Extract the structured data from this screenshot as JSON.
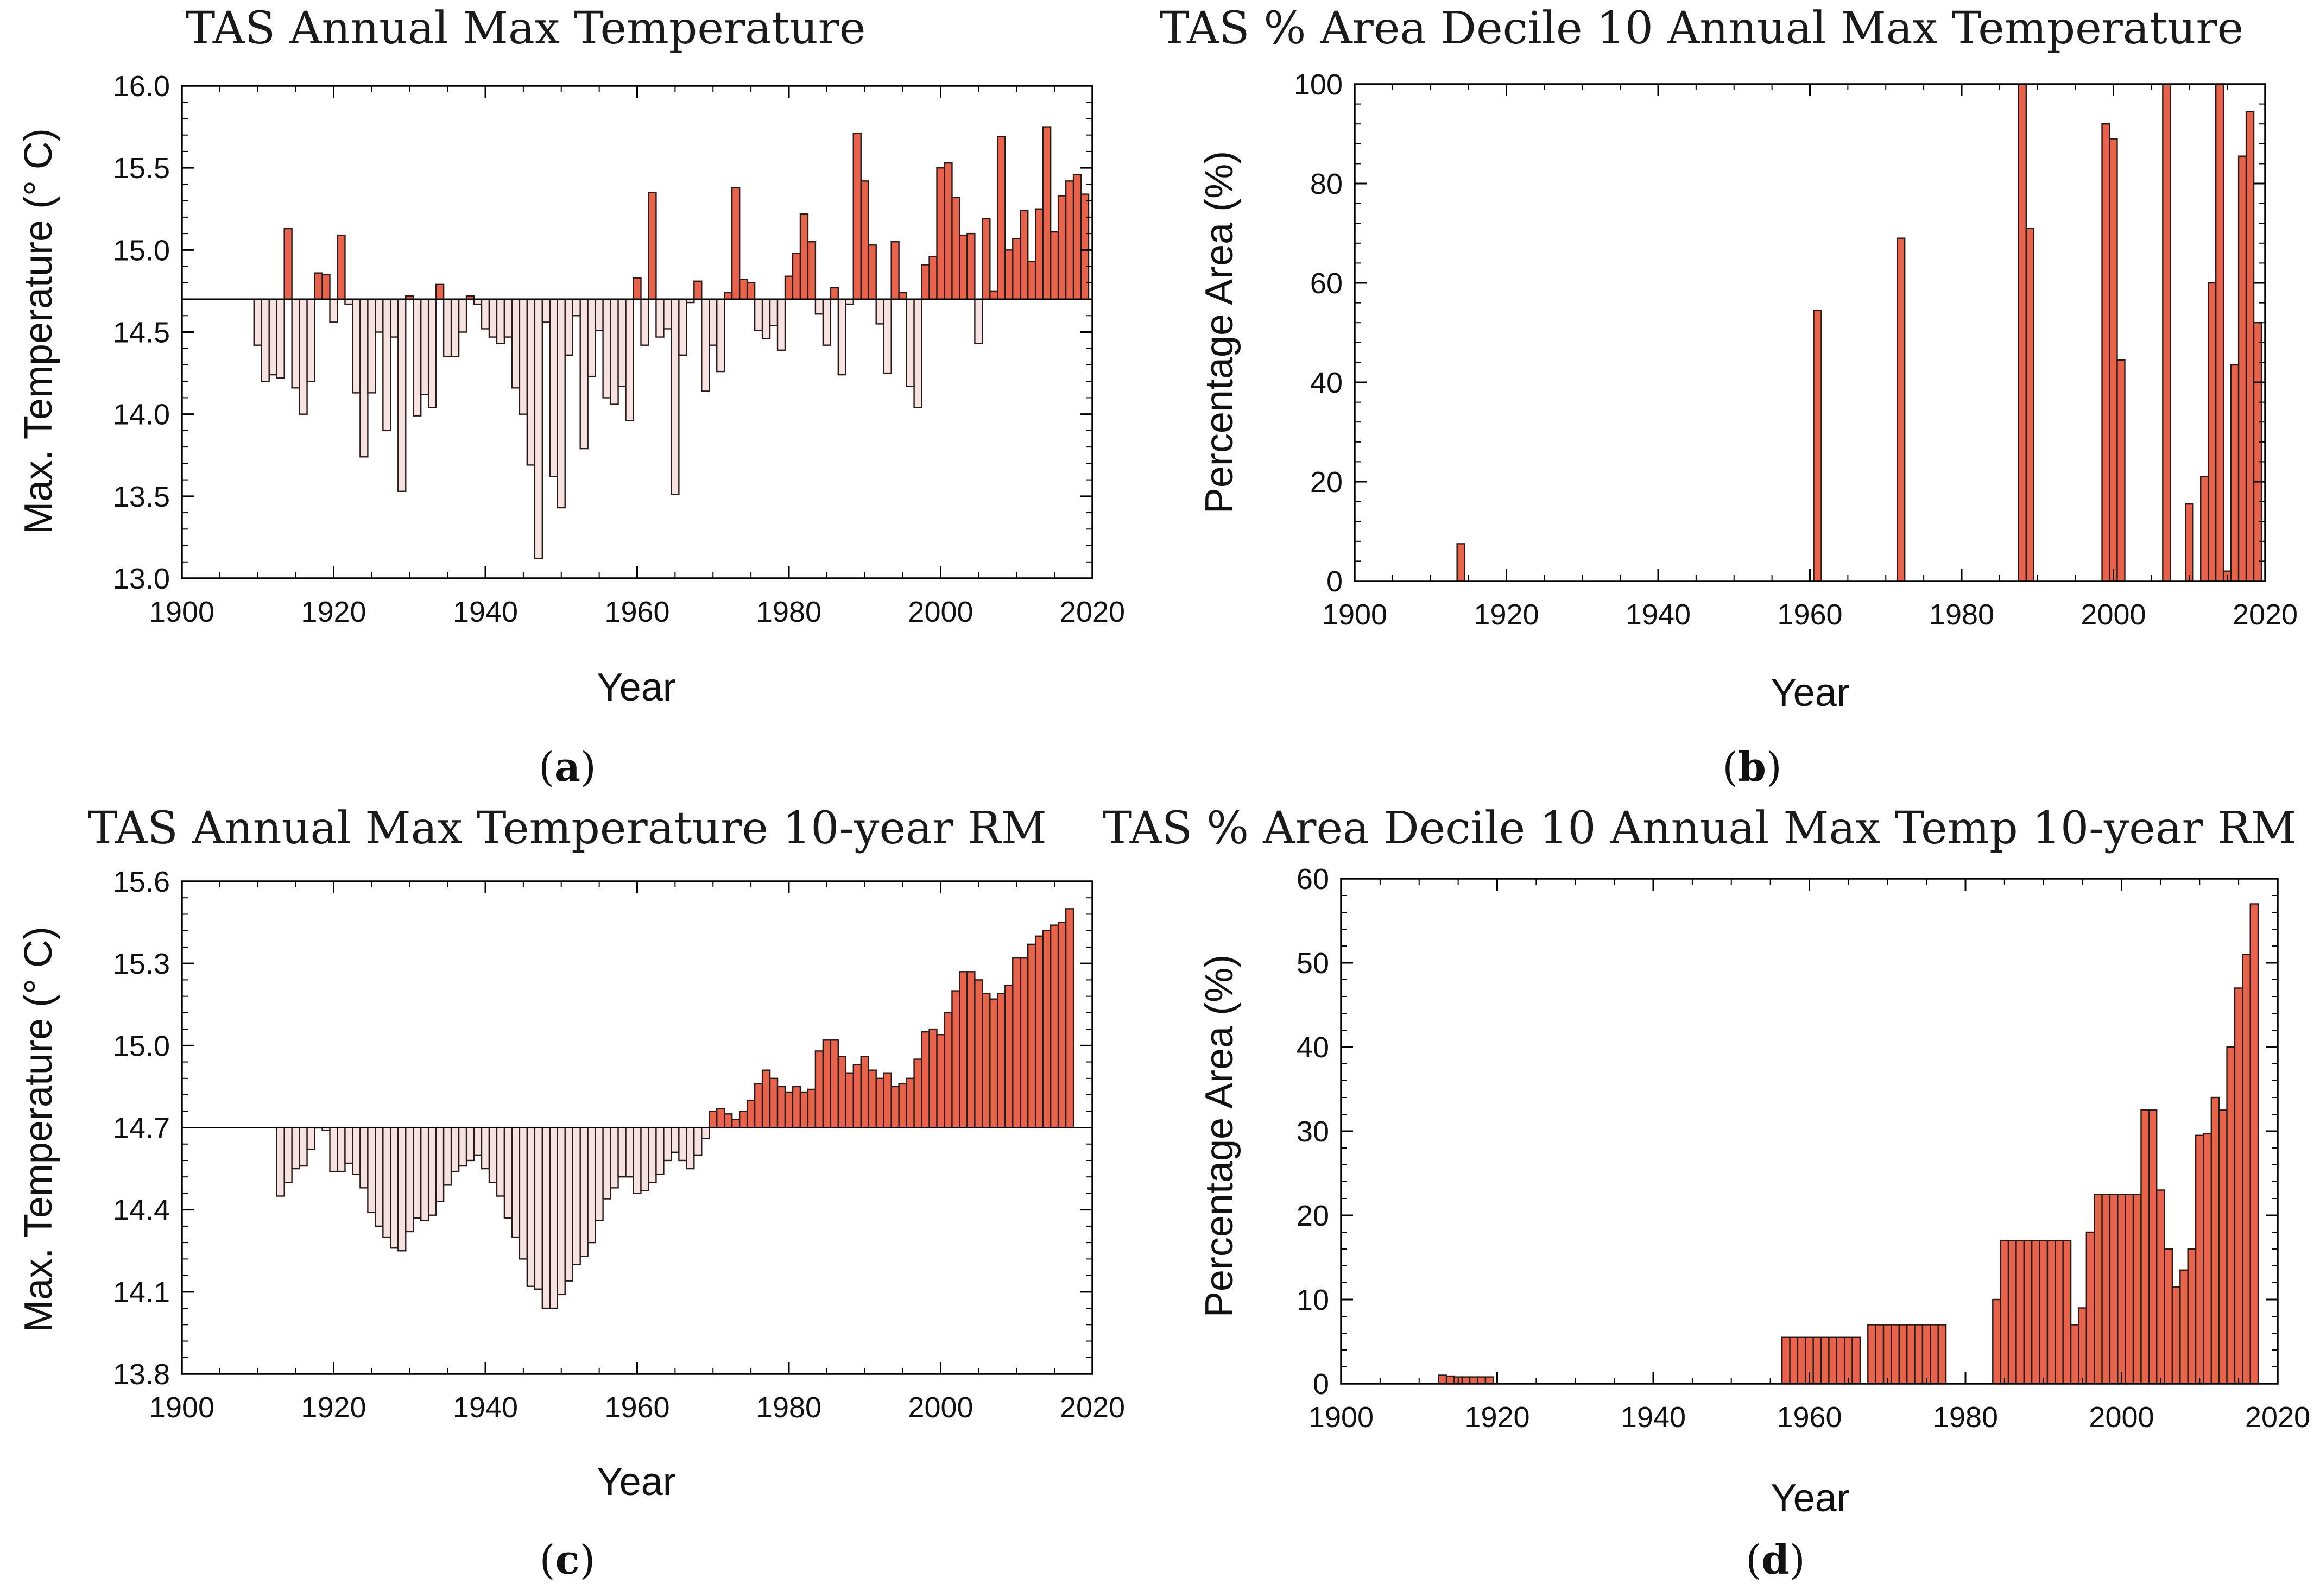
{
  "colors": {
    "positive": "#E8634C",
    "negative": "#F6E2E0",
    "edge": "#2a1a1a",
    "axis": "#000000"
  },
  "chart_data": [
    {
      "panel": "a",
      "sublabel": "a",
      "type": "bar",
      "title": "TAS Annual Max Temperature",
      "xlabel": "Year",
      "ylabel": "Max. Temperature (° C)",
      "xlim": [
        1900,
        2020
      ],
      "ylim": [
        13.0,
        16.0
      ],
      "baseline": 14.7,
      "xticks": [
        1900,
        1920,
        1940,
        1960,
        1980,
        2000,
        2020
      ],
      "xtick_labels": [
        "1900",
        "1920",
        "1940",
        "1960",
        "1980",
        "2000",
        "2020"
      ],
      "yticks": [
        13.0,
        13.5,
        14.0,
        14.5,
        15.0,
        15.5,
        16.0
      ],
      "ytick_labels": [
        "13.0",
        "13.5",
        "14.0",
        "14.5",
        "15.0",
        "15.5",
        "16.0"
      ],
      "x": [
        1910,
        1911,
        1912,
        1913,
        1914,
        1915,
        1916,
        1917,
        1918,
        1919,
        1920,
        1921,
        1922,
        1923,
        1924,
        1925,
        1926,
        1927,
        1928,
        1929,
        1930,
        1931,
        1932,
        1933,
        1934,
        1935,
        1936,
        1937,
        1938,
        1939,
        1940,
        1941,
        1942,
        1943,
        1944,
        1945,
        1946,
        1947,
        1948,
        1949,
        1950,
        1951,
        1952,
        1953,
        1954,
        1955,
        1956,
        1957,
        1958,
        1959,
        1960,
        1961,
        1962,
        1963,
        1964,
        1965,
        1966,
        1967,
        1968,
        1969,
        1970,
        1971,
        1972,
        1973,
        1974,
        1975,
        1976,
        1977,
        1978,
        1979,
        1980,
        1981,
        1982,
        1983,
        1984,
        1985,
        1986,
        1987,
        1988,
        1989,
        1990,
        1991,
        1992,
        1993,
        1994,
        1995,
        1996,
        1997,
        1998,
        1999,
        2000,
        2001,
        2002,
        2003,
        2004,
        2005,
        2006,
        2007,
        2008,
        2009,
        2010,
        2011,
        2012,
        2013,
        2014,
        2015,
        2016,
        2017,
        2018,
        2019
      ],
      "values": [
        14.42,
        14.2,
        14.24,
        14.22,
        15.13,
        14.16,
        14.0,
        14.2,
        14.86,
        14.85,
        14.56,
        15.09,
        14.67,
        14.13,
        13.74,
        14.13,
        14.5,
        13.9,
        14.47,
        13.53,
        14.72,
        13.99,
        14.12,
        14.04,
        14.79,
        14.35,
        14.35,
        14.5,
        14.72,
        14.67,
        14.52,
        14.47,
        14.43,
        14.47,
        14.16,
        14.0,
        13.69,
        13.12,
        14.56,
        13.62,
        13.43,
        14.36,
        14.6,
        13.79,
        14.23,
        14.51,
        14.1,
        14.06,
        14.17,
        13.96,
        14.83,
        14.42,
        15.35,
        14.47,
        14.52,
        13.51,
        14.36,
        14.68,
        14.81,
        14.14,
        14.42,
        14.26,
        14.74,
        15.38,
        14.82,
        14.8,
        14.51,
        14.46,
        14.54,
        14.39,
        14.84,
        14.98,
        15.22,
        15.05,
        14.61,
        14.42,
        14.77,
        14.24,
        14.67,
        15.71,
        15.42,
        15.03,
        14.55,
        14.25,
        15.05,
        14.74,
        14.17,
        14.04,
        14.91,
        14.96,
        15.5,
        15.53,
        15.32,
        15.09,
        15.1,
        14.43,
        15.19,
        14.75,
        15.69,
        15.0,
        15.07,
        15.24,
        14.93,
        15.25,
        15.75,
        15.11,
        15.33,
        15.42,
        15.46,
        15.34
      ]
    },
    {
      "panel": "b",
      "sublabel": "b",
      "type": "bar",
      "title": "TAS % Area Decile 10 Annual Max Temperature",
      "xlabel": "Year",
      "ylabel": "Percentage Area (%)",
      "xlim": [
        1900,
        2020
      ],
      "ylim": [
        0,
        100
      ],
      "baseline": 0,
      "xticks": [
        1900,
        1920,
        1940,
        1960,
        1980,
        2000,
        2020
      ],
      "xtick_labels": [
        "1900",
        "1920",
        "1940",
        "1960",
        "1980",
        "2000",
        "2020"
      ],
      "yticks": [
        0,
        20,
        40,
        60,
        80,
        100
      ],
      "ytick_labels": [
        "0",
        "20",
        "40",
        "60",
        "80",
        "100"
      ],
      "x": [
        1914,
        1961,
        1972,
        1988,
        1989,
        1999,
        2000,
        2001,
        2007,
        2010,
        2012,
        2013,
        2014,
        2015,
        2016,
        2017,
        2018,
        2019
      ],
      "values": [
        7.5,
        54.5,
        69.0,
        100.0,
        71.0,
        92.0,
        89.0,
        44.5,
        100.0,
        15.5,
        21.0,
        60.0,
        100.0,
        2.0,
        43.5,
        85.5,
        94.5,
        52.0
      ]
    },
    {
      "panel": "c",
      "sublabel": "c",
      "type": "bar",
      "title": "TAS Annual Max Temperature 10-year RM",
      "xlabel": "Year",
      "ylabel": "Max. Temperature (° C)",
      "xlim": [
        1900,
        2020
      ],
      "ylim": [
        13.8,
        15.6
      ],
      "baseline": 14.7,
      "xticks": [
        1900,
        1920,
        1940,
        1960,
        1980,
        2000,
        2020
      ],
      "xtick_labels": [
        "1900",
        "1920",
        "1940",
        "1960",
        "1980",
        "2000",
        "2020"
      ],
      "yticks": [
        13.8,
        14.1,
        14.4,
        14.7,
        15.0,
        15.3,
        15.6
      ],
      "ytick_labels": [
        "13.8",
        "14.1",
        "14.4",
        "14.7",
        "15.0",
        "15.3",
        "15.6"
      ],
      "x": [
        1913,
        1914,
        1915,
        1916,
        1917,
        1918,
        1919,
        1920,
        1921,
        1922,
        1923,
        1924,
        1925,
        1926,
        1927,
        1928,
        1929,
        1930,
        1931,
        1932,
        1933,
        1934,
        1935,
        1936,
        1937,
        1938,
        1939,
        1940,
        1941,
        1942,
        1943,
        1944,
        1945,
        1946,
        1947,
        1948,
        1949,
        1950,
        1951,
        1952,
        1953,
        1954,
        1955,
        1956,
        1957,
        1958,
        1959,
        1960,
        1961,
        1962,
        1963,
        1964,
        1965,
        1966,
        1967,
        1968,
        1969,
        1970,
        1971,
        1972,
        1973,
        1974,
        1975,
        1976,
        1977,
        1978,
        1979,
        1980,
        1981,
        1982,
        1983,
        1984,
        1985,
        1986,
        1987,
        1988,
        1989,
        1990,
        1991,
        1992,
        1993,
        1994,
        1995,
        1996,
        1997,
        1998,
        1999,
        2000,
        2001,
        2002,
        2003,
        2004,
        2005,
        2006,
        2007,
        2008,
        2009,
        2010,
        2011,
        2012,
        2013,
        2014,
        2015,
        2016,
        2017
      ],
      "values": [
        14.45,
        14.5,
        14.55,
        14.56,
        14.62,
        14.7,
        14.69,
        14.54,
        14.54,
        14.57,
        14.53,
        14.48,
        14.39,
        14.34,
        14.3,
        14.26,
        14.25,
        14.32,
        14.37,
        14.36,
        14.38,
        14.43,
        14.49,
        14.54,
        14.56,
        14.58,
        14.6,
        14.55,
        14.5,
        14.45,
        14.37,
        14.3,
        14.22,
        14.12,
        14.11,
        14.04,
        14.04,
        14.09,
        14.14,
        14.2,
        14.23,
        14.28,
        14.36,
        14.44,
        14.48,
        14.52,
        14.52,
        14.46,
        14.47,
        14.5,
        14.53,
        14.58,
        14.61,
        14.58,
        14.55,
        14.6,
        14.66,
        14.76,
        14.77,
        14.75,
        14.73,
        14.76,
        14.8,
        14.86,
        14.91,
        14.88,
        14.85,
        14.83,
        14.85,
        14.83,
        14.84,
        14.98,
        15.02,
        15.02,
        14.96,
        14.9,
        14.93,
        14.96,
        14.91,
        14.88,
        14.9,
        14.85,
        14.86,
        14.88,
        14.95,
        15.05,
        15.06,
        15.04,
        15.12,
        15.2,
        15.27,
        15.27,
        15.24,
        15.19,
        15.17,
        15.19,
        15.22,
        15.32,
        15.32,
        15.37,
        15.4,
        15.42,
        15.44,
        15.45,
        15.5
      ]
    },
    {
      "panel": "d",
      "sublabel": "d",
      "type": "bar",
      "title": "TAS % Area Decile 10 Annual Max Temp 10-year RM",
      "xlabel": "Year",
      "ylabel": "Percentage Area (%)",
      "xlim": [
        1900,
        2020
      ],
      "ylim": [
        0,
        60
      ],
      "baseline": 0,
      "xticks": [
        1900,
        1920,
        1940,
        1960,
        1980,
        2000,
        2020
      ],
      "xtick_labels": [
        "1900",
        "1920",
        "1940",
        "1960",
        "1980",
        "2000",
        "2020"
      ],
      "yticks": [
        0,
        10,
        20,
        30,
        40,
        50,
        60
      ],
      "ytick_labels": [
        "0",
        "10",
        "20",
        "30",
        "40",
        "50",
        "60"
      ],
      "x": [
        1913,
        1914,
        1915,
        1916,
        1917,
        1918,
        1919,
        1957,
        1958,
        1959,
        1960,
        1961,
        1962,
        1963,
        1964,
        1965,
        1966,
        1968,
        1969,
        1970,
        1971,
        1972,
        1973,
        1974,
        1975,
        1976,
        1977,
        1984,
        1985,
        1986,
        1987,
        1988,
        1989,
        1990,
        1991,
        1992,
        1993,
        1994,
        1995,
        1996,
        1997,
        1998,
        1999,
        2000,
        2001,
        2002,
        2003,
        2004,
        2005,
        2006,
        2007,
        2008,
        2009,
        2010,
        2011,
        2012,
        2013,
        2014,
        2015,
        2016,
        2017
      ],
      "values": [
        1.0,
        0.9,
        0.8,
        0.8,
        0.8,
        0.8,
        0.8,
        5.5,
        5.5,
        5.5,
        5.5,
        5.5,
        5.5,
        5.5,
        5.5,
        5.5,
        5.5,
        7.0,
        7.0,
        7.0,
        7.0,
        7.0,
        7.0,
        7.0,
        7.0,
        7.0,
        7.0,
        10.0,
        17.0,
        17.0,
        17.0,
        17.0,
        17.0,
        17.0,
        17.0,
        17.0,
        17.0,
        7.0,
        9.0,
        18.0,
        22.5,
        22.5,
        22.5,
        22.5,
        22.5,
        22.5,
        32.5,
        32.5,
        23.0,
        16.0,
        11.5,
        13.5,
        16.0,
        29.5,
        29.7,
        34.0,
        32.5,
        40.0,
        47.0,
        51.0,
        57.0
      ]
    }
  ]
}
